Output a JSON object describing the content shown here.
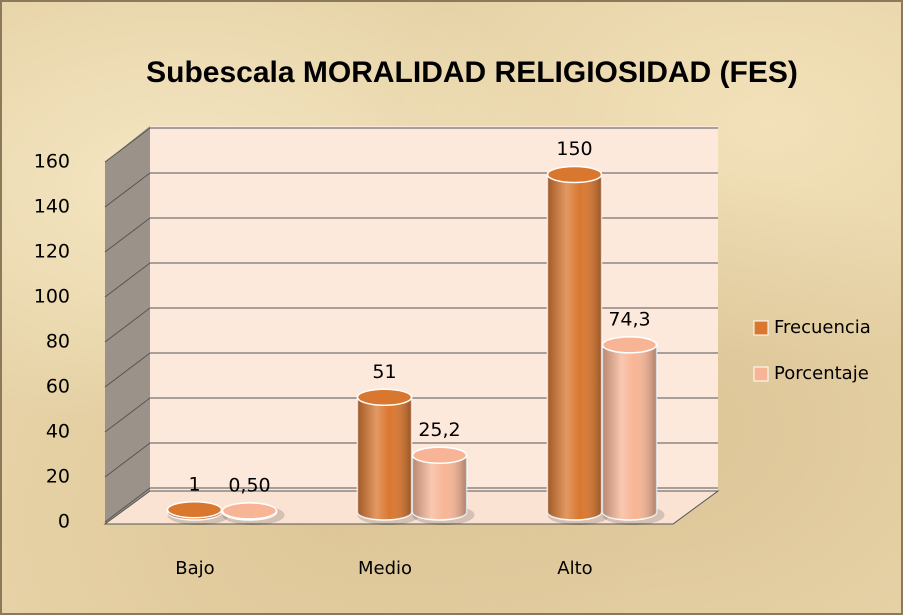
{
  "chart_data": {
    "type": "bar3d",
    "title": "Subescala   MORALIDAD  RELIGIOSIDAD  (FES)",
    "categories": [
      "Bajo",
      "Medio",
      "Alto"
    ],
    "series": [
      {
        "name": "Frecuencia",
        "color": "#d9772f",
        "values": [
          1,
          51,
          150
        ]
      },
      {
        "name": "Porcentaje",
        "color": "#f7b596",
        "values": [
          0.5,
          25.2,
          74.3
        ],
        "value_labels": [
          "0,50",
          "25,2",
          "74,3"
        ]
      }
    ],
    "ylim": [
      0,
      160
    ],
    "yticks": [
      0,
      20,
      40,
      60,
      80,
      100,
      120,
      140,
      160
    ],
    "grid": true,
    "legend": "right"
  }
}
